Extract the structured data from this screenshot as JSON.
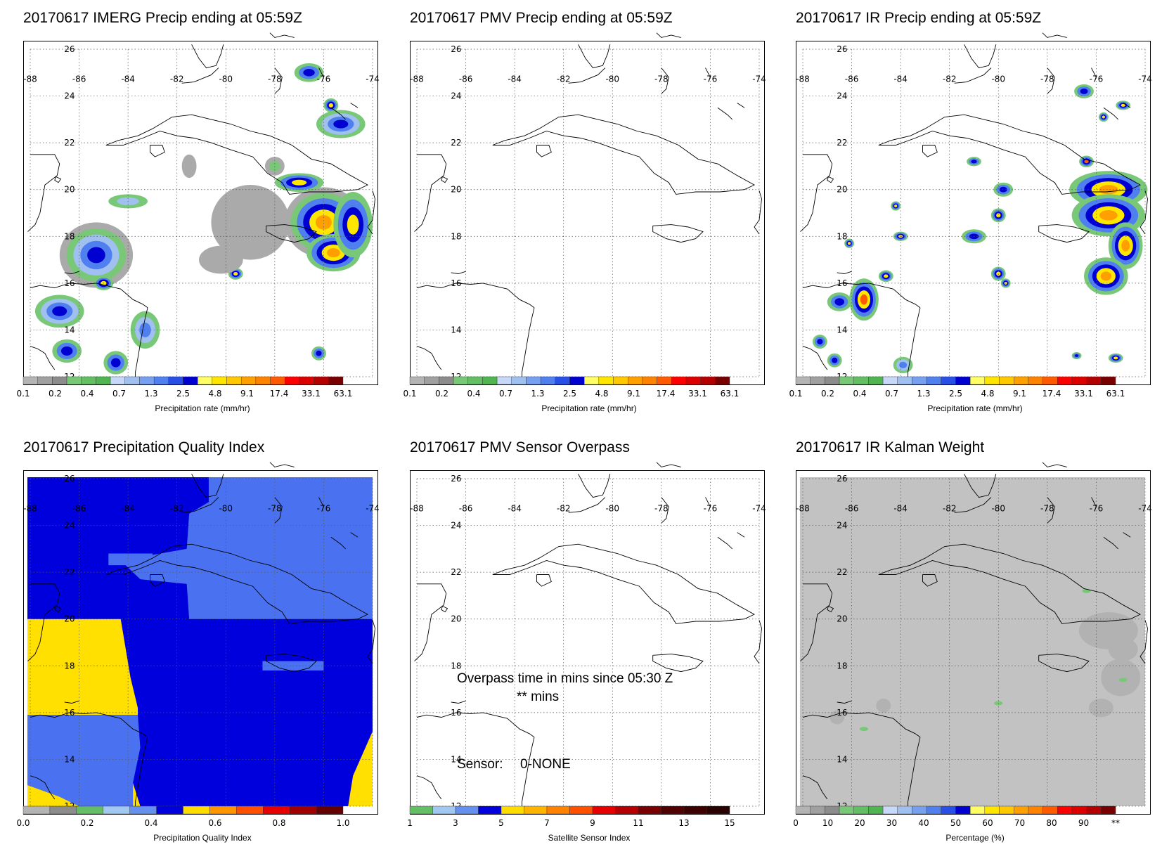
{
  "panels": [
    {
      "title": "20170617 IMERG Precip ending at 05:59Z",
      "colorbar_title": "Precipitation rate (mm/hr)",
      "colorbar_labels": [
        "0.1",
        "0.2",
        "0.4",
        "0.7",
        "1.3",
        "2.5",
        "4.8",
        "9.1",
        "17.4",
        "33.1",
        "63.1"
      ],
      "field": "precip"
    },
    {
      "title": "20170617 PMV Precip ending at 05:59Z",
      "colorbar_title": "Precipitation rate (mm/hr)",
      "colorbar_labels": [
        "0.1",
        "0.2",
        "0.4",
        "0.7",
        "1.3",
        "2.5",
        "4.8",
        "9.1",
        "17.4",
        "33.1",
        "63.1"
      ],
      "field": "none"
    },
    {
      "title": "20170617 IR Precip ending at 05:59Z",
      "colorbar_title": "Precipitation rate (mm/hr)",
      "colorbar_labels": [
        "0.1",
        "0.2",
        "0.4",
        "0.7",
        "1.3",
        "2.5",
        "4.8",
        "9.1",
        "17.4",
        "33.1",
        "63.1"
      ],
      "field": "precip_ir"
    },
    {
      "title": "20170617 Precipitation Quality Index",
      "colorbar_title": "Precipitation Quality Index",
      "colorbar_labels": [
        "0.0",
        "0.2",
        "0.4",
        "0.6",
        "0.8",
        "1.0"
      ],
      "field": "quality"
    },
    {
      "title": "20170617 PMV Sensor Overpass",
      "colorbar_title": "Satellite Sensor Index",
      "colorbar_labels": [
        "1",
        "3",
        "5",
        "7",
        "9",
        "11",
        "13",
        "15"
      ],
      "field": "overpass",
      "overpass_line1": "Overpass time in mins since 05:30 Z",
      "overpass_line2": "** mins",
      "sensor_label": "Sensor:",
      "sensor_value": "0-NONE"
    },
    {
      "title": "20170617 IR Kalman Weight",
      "colorbar_title": "Percentage (%)",
      "colorbar_labels": [
        "0",
        "10",
        "20",
        "30",
        "40",
        "50",
        "60",
        "70",
        "80",
        "90",
        "**"
      ],
      "field": "kalman"
    }
  ],
  "map_axes": {
    "lon_labels": [
      "-88",
      "-86",
      "-84",
      "-82",
      "-80",
      "-78",
      "-76",
      "-74"
    ],
    "lat_labels": [
      "26",
      "24",
      "22",
      "20",
      "18",
      "16",
      "14",
      "12"
    ]
  },
  "colors": {
    "precip_scale": [
      "#b4b4b4",
      "#a0a0a0",
      "#8c8c8c",
      "#78c878",
      "#64be64",
      "#50b450",
      "#c8d8f8",
      "#a0c0f0",
      "#78a0f0",
      "#5080f0",
      "#2850e8",
      "#0000d0",
      "#ffff64",
      "#ffe600",
      "#ffc800",
      "#ffa000",
      "#ff8200",
      "#ff5a00",
      "#ff0000",
      "#dc0000",
      "#b40000",
      "#780000"
    ],
    "quality_scale": [
      "#b4b4b4",
      "#8c8c8c",
      "#64be64",
      "#a0c8f0",
      "#6490f0",
      "#0000dc",
      "#ffdc00",
      "#ff9600",
      "#ff5000",
      "#e60000",
      "#a00000",
      "#640000"
    ],
    "sensor_scale": [
      "#64be64",
      "#a0c8f0",
      "#6490f0",
      "#0000dc",
      "#ffdc00",
      "#ffb400",
      "#ff8200",
      "#ff5000",
      "#e60000",
      "#b40000",
      "#780000",
      "#500000",
      "#3c0000",
      "#280000"
    ],
    "kalman_scale": [
      "#b4b4b4",
      "#a0a0a0",
      "#8c8c8c",
      "#78c878",
      "#64be64",
      "#50b450",
      "#c8d8f8",
      "#a0c0f0",
      "#78a0f0",
      "#5080f0",
      "#2850e8",
      "#0000d0",
      "#ffff64",
      "#ffe600",
      "#ffc800",
      "#ffa000",
      "#ff8200",
      "#ff5a00",
      "#ff0000",
      "#dc0000",
      "#b40000",
      "#780000"
    ],
    "quality_fill": {
      "low": "#0000dc",
      "mid": "#4a72f0",
      "high": "#ffe000"
    },
    "kalman_fill": "#c2c2c2"
  }
}
